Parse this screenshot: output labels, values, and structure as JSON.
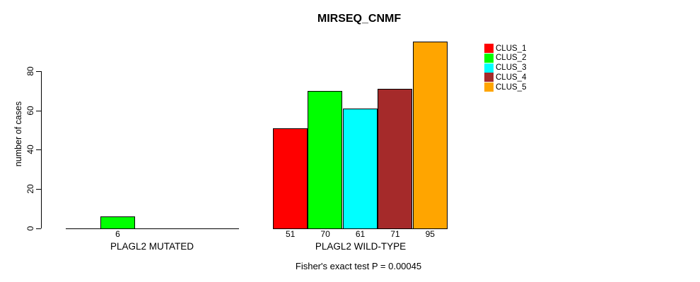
{
  "chart_data": {
    "type": "bar",
    "title": "MIRSEQ_CNMF",
    "ylabel": "number of cases",
    "yticks": [
      0,
      20,
      40,
      60,
      80
    ],
    "ylim": [
      0,
      95
    ],
    "grid": false,
    "legend_position": "right-outside",
    "clusters": [
      {
        "name": "CLUS_1",
        "color": "#FF0000"
      },
      {
        "name": "CLUS_2",
        "color": "#00FF00"
      },
      {
        "name": "CLUS_3",
        "color": "#00FFFF"
      },
      {
        "name": "CLUS_4",
        "color": "#A52A2A"
      },
      {
        "name": "CLUS_5",
        "color": "#FFA500"
      }
    ],
    "groups": [
      {
        "label": "PLAGL2 MUTATED",
        "values": [
          0,
          6,
          0,
          0,
          0
        ],
        "value_labels": [
          "",
          "6",
          "",
          "",
          ""
        ]
      },
      {
        "label": "PLAGL2 WILD-TYPE",
        "values": [
          51,
          70,
          61,
          71,
          95
        ],
        "value_labels": [
          "51",
          "70",
          "61",
          "71",
          "95"
        ]
      }
    ],
    "annotation": "Fisher's exact test P = 0.00045"
  },
  "colors": {
    "axis": "#000000",
    "bar_border": "#000000",
    "background": "#FFFFFF"
  }
}
